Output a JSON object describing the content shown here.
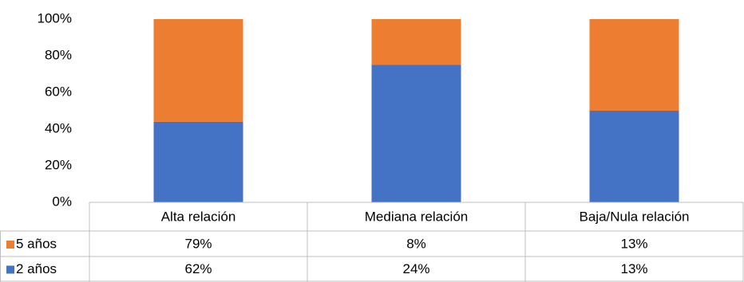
{
  "chart_data": {
    "type": "bar",
    "stacking": "percent",
    "categories": [
      "Alta relación",
      "Mediana relación",
      "Baja/Nula relación"
    ],
    "series": [
      {
        "name": "5 años",
        "color": "#ed7d31",
        "values": [
          79,
          8,
          13
        ],
        "value_labels": [
          "79%",
          "8%",
          "13%"
        ]
      },
      {
        "name": "2 años",
        "color": "#4472c4",
        "values": [
          62,
          24,
          13
        ],
        "value_labels": [
          "62%",
          "24%",
          "13%"
        ]
      }
    ],
    "ylim": [
      0,
      100
    ],
    "yticks": [
      {
        "value": 0,
        "label": "0%"
      },
      {
        "value": 20,
        "label": "20%"
      },
      {
        "value": 40,
        "label": "40%"
      },
      {
        "value": 60,
        "label": "60%"
      },
      {
        "value": 80,
        "label": "80%"
      },
      {
        "value": 100,
        "label": "100%"
      }
    ],
    "grid": false,
    "data_table": true
  }
}
